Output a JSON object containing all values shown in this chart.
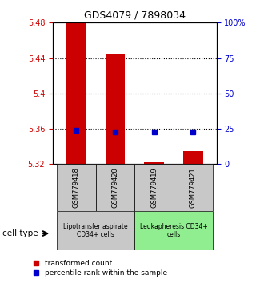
{
  "title": "GDS4079 / 7898034",
  "samples": [
    "GSM779418",
    "GSM779420",
    "GSM779419",
    "GSM779421"
  ],
  "red_values": [
    5.485,
    5.445,
    5.322,
    5.335
  ],
  "blue_values": [
    5.358,
    5.356,
    5.356,
    5.356
  ],
  "y_min": 5.32,
  "y_max": 5.48,
  "y_ticks_left": [
    5.32,
    5.36,
    5.4,
    5.44,
    5.48
  ],
  "y_ticks_right": [
    0,
    25,
    50,
    75,
    100
  ],
  "y_ticks_right_labels": [
    "0",
    "25",
    "50",
    "75",
    "100%"
  ],
  "dotted_lines": [
    5.36,
    5.4,
    5.44
  ],
  "red_color": "#cc0000",
  "blue_color": "#0000cc",
  "bar_width": 0.5,
  "cell_type_label": "cell type",
  "legend_red": "transformed count",
  "legend_blue": "percentile rank within the sample",
  "group1_label": "Lipotransfer aspirate\nCD34+ cells",
  "group2_label": "Leukapheresis CD34+\ncells",
  "group1_color": "#c8c8c8",
  "group2_color": "#90ee90",
  "sample_box_color": "#c8c8c8"
}
